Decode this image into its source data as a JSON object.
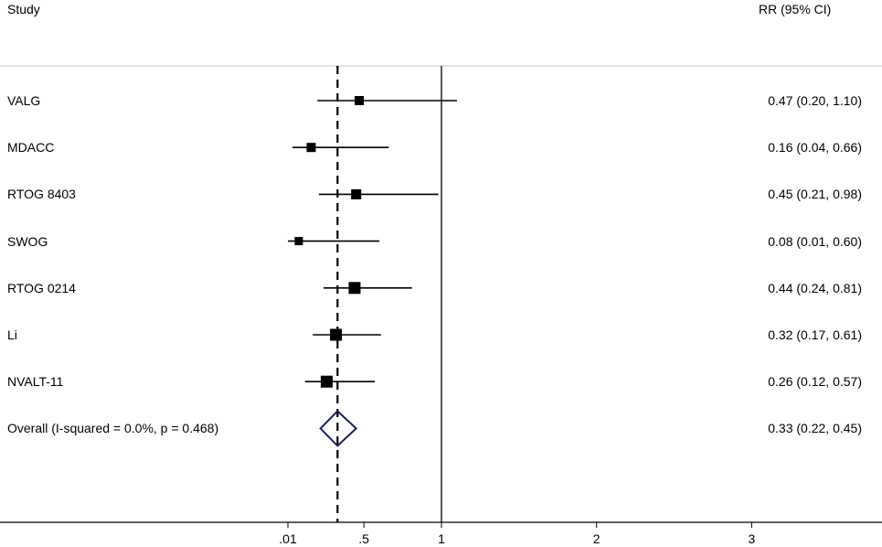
{
  "header": {
    "study_label": "Study",
    "effect_label": "RR (95% CI)"
  },
  "colors": {
    "marker": "#000000",
    "overall_diamond": "#1a1f5c",
    "line": "#000000"
  },
  "chart_data": {
    "type": "forest",
    "xlabel": "",
    "ylabel": "",
    "x_ticks": [
      {
        "value": 0.01,
        "label": ".01"
      },
      {
        "value": 0.5,
        "label": ".5"
      },
      {
        "value": 1,
        "label": "1"
      },
      {
        "value": 2,
        "label": "2"
      },
      {
        "value": 3,
        "label": "3"
      }
    ],
    "xlim": [
      -1.8,
      3.85
    ],
    "null_line": 1,
    "overall_line": 0.33,
    "studies": [
      {
        "name": "VALG",
        "rr": 0.47,
        "lo": 0.2,
        "hi": 1.1,
        "text": "0.47 (0.20, 1.10)"
      },
      {
        "name": "MDACC",
        "rr": 0.16,
        "lo": 0.04,
        "hi": 0.66,
        "text": "0.16 (0.04, 0.66)"
      },
      {
        "name": "RTOG 8403",
        "rr": 0.45,
        "lo": 0.21,
        "hi": 0.98,
        "text": "0.45 (0.21, 0.98)"
      },
      {
        "name": "SWOG",
        "rr": 0.08,
        "lo": 0.01,
        "hi": 0.6,
        "text": "0.08 (0.01, 0.60)"
      },
      {
        "name": "RTOG 0214",
        "rr": 0.44,
        "lo": 0.24,
        "hi": 0.81,
        "text": "0.44 (0.24, 0.81)"
      },
      {
        "name": "Li",
        "rr": 0.32,
        "lo": 0.17,
        "hi": 0.61,
        "text": "0.32 (0.17, 0.61)"
      },
      {
        "name": "NVALT-11",
        "rr": 0.26,
        "lo": 0.12,
        "hi": 0.57,
        "text": "0.26 (0.12, 0.57)"
      }
    ],
    "overall": {
      "name": "Overall  (I-squared = 0.0%, p = 0.468)",
      "rr": 0.33,
      "lo": 0.22,
      "hi": 0.45,
      "text": "0.33 (0.22, 0.45)"
    }
  }
}
